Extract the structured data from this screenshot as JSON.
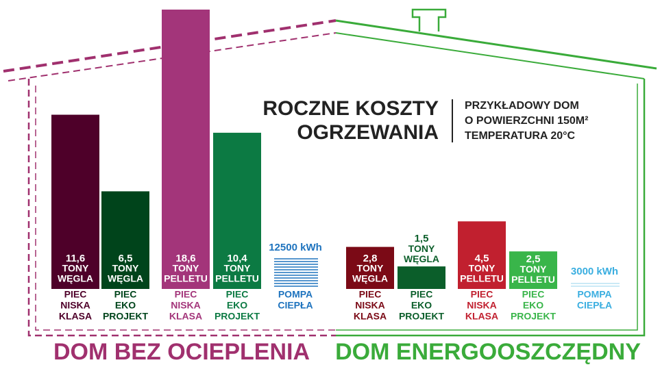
{
  "chart_data": {
    "type": "bar",
    "title": [
      "ROCZNE KOSZTY",
      "OGRZEWANIA"
    ],
    "subtitle": [
      "PRZYKŁADOWY DOM",
      "O POWIERZCHNI 150M²",
      "TEMPERATURA 20°C"
    ],
    "groups": [
      {
        "name": "DOM BEZ OCIEPLENIA",
        "color": "#a0306e",
        "bars": [
          {
            "value": 11.6,
            "value_label": "11,6",
            "unit": "TONY",
            "fuel": "WĘGLA",
            "category": [
              "PIEC",
              "NISKA",
              "KLASA"
            ],
            "color": "#4e0029"
          },
          {
            "value": 6.5,
            "value_label": "6,5",
            "unit": "TONY",
            "fuel": "WĘGLA",
            "category": [
              "PIEC",
              "EKO",
              "PROJEKT"
            ],
            "color": "#00441b"
          },
          {
            "value": 18.6,
            "value_label": "18,6",
            "unit": "TONY",
            "fuel": "PELLETU",
            "category": [
              "PIEC",
              "NISKA",
              "KLASA"
            ],
            "color": "#a3357a"
          },
          {
            "value": 10.4,
            "value_label": "10,4",
            "unit": "TONY",
            "fuel": "PELLETU",
            "category": [
              "PIEC",
              "EKO",
              "PROJEKT"
            ],
            "color": "#0c7a43"
          },
          {
            "value": 12500,
            "value_label": "12500 kWh",
            "category": [
              "POMPA",
              "CIEPŁA"
            ],
            "color": "#1e73be"
          }
        ]
      },
      {
        "name": "DOM ENERGOOSZCZĘDNY",
        "color": "#3aab3a",
        "bars": [
          {
            "value": 2.8,
            "value_label": "2,8",
            "unit": "TONY",
            "fuel": "WĘGLA",
            "category": [
              "PIEC",
              "NISKA",
              "KLASA"
            ],
            "color": "#7b0a16"
          },
          {
            "value": 1.5,
            "value_label": "1,5",
            "unit": "TONY",
            "fuel": "WĘGLA",
            "category": [
              "PIEC",
              "EKO",
              "PROJEKT"
            ],
            "color": "#0b5e2a"
          },
          {
            "value": 4.5,
            "value_label": "4,5",
            "unit": "TONY",
            "fuel": "PELLETU",
            "category": [
              "PIEC",
              "NISKA",
              "KLASA"
            ],
            "color": "#c1202f"
          },
          {
            "value": 2.5,
            "value_label": "2,5",
            "unit": "TONY",
            "fuel": "PELLETU",
            "category": [
              "PIEC",
              "EKO",
              "PROJEKT"
            ],
            "color": "#39b54a"
          },
          {
            "value": 3000,
            "value_label": "3000 kWh",
            "category": [
              "POMPA",
              "CIEPŁA"
            ],
            "color": "#3aaee0"
          }
        ]
      }
    ]
  }
}
